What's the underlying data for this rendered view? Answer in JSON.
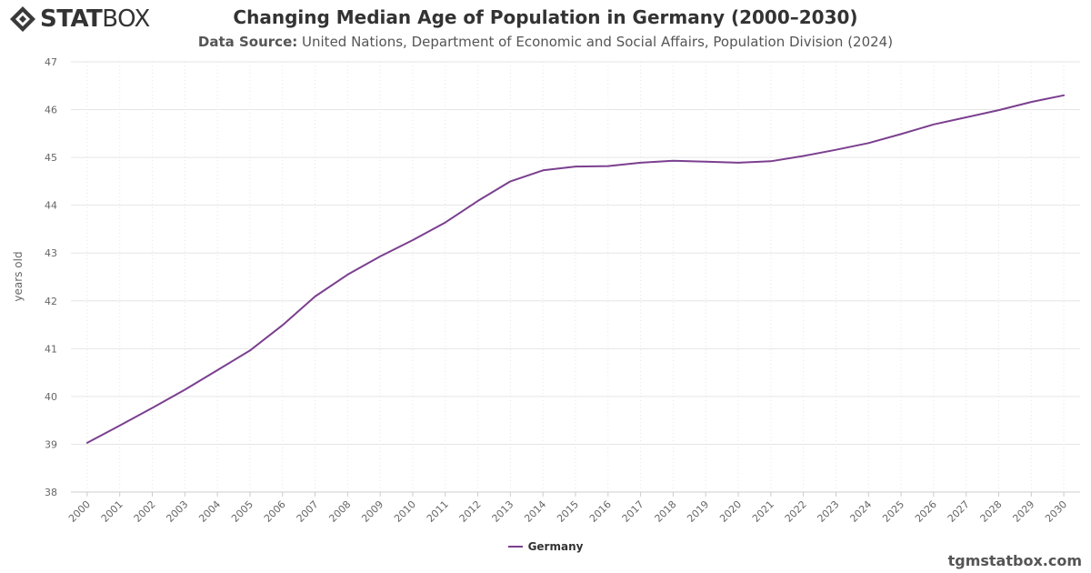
{
  "brand": {
    "logo_bold": "STAT",
    "logo_light": "BOX"
  },
  "header": {
    "title": "Changing Median Age of Population in Germany (2000–2030)",
    "subtitle_label": "Data Source:",
    "subtitle_text": "United Nations, Department of Economic and Social Affairs, Population Division (2024)"
  },
  "footer": {
    "watermark": "tgmstatbox.com"
  },
  "colors": {
    "series": "#7b3f8f",
    "grid": "#e6e6e6",
    "axis_text": "#666666",
    "logo": "#333333"
  },
  "icons": {
    "logo": "statbox-diamond-icon"
  },
  "chart_data": {
    "type": "line",
    "title": "Changing Median Age of Population in Germany (2000–2030)",
    "xlabel": "",
    "ylabel": "years old",
    "ylim": [
      38,
      47
    ],
    "yticks": [
      38,
      39,
      40,
      41,
      42,
      43,
      44,
      45,
      46,
      47
    ],
    "grid": true,
    "legend_position": "bottom-center",
    "x": [
      "2000",
      "2001",
      "2002",
      "2003",
      "2004",
      "2005",
      "2006",
      "2007",
      "2008",
      "2009",
      "2010",
      "2011",
      "2012",
      "2013",
      "2014",
      "2015",
      "2016",
      "2017",
      "2018",
      "2019",
      "2020",
      "2021",
      "2022",
      "2023",
      "2024",
      "2025",
      "2026",
      "2027",
      "2028",
      "2029",
      "2030"
    ],
    "series": [
      {
        "name": "Germany",
        "values": [
          39.03,
          39.39,
          39.76,
          40.14,
          40.55,
          40.96,
          41.49,
          42.09,
          42.55,
          42.93,
          43.27,
          43.64,
          44.09,
          44.5,
          44.73,
          44.81,
          44.82,
          44.89,
          44.93,
          44.91,
          44.89,
          44.92,
          45.03,
          45.16,
          45.3,
          45.49,
          45.69,
          45.84,
          45.99,
          46.16,
          46.3
        ]
      }
    ]
  }
}
